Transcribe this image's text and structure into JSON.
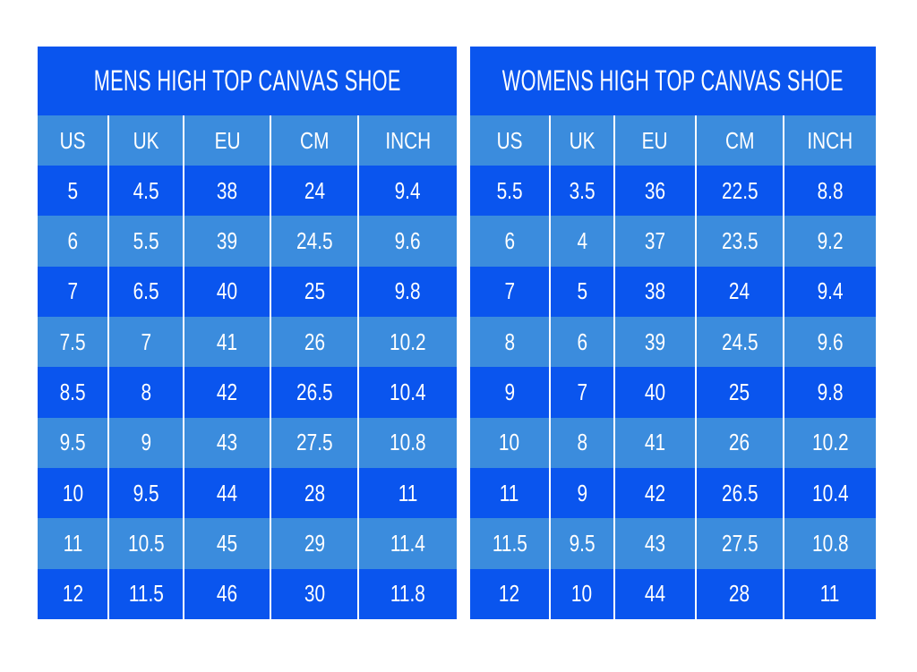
{
  "colors": {
    "dark_blue": "#0a55ee",
    "light_blue": "#3b8cdd",
    "text_white": "#ffffff",
    "divider_white": "#ffffff",
    "page_background": "#ffffff"
  },
  "chart_data": [
    {
      "type": "table",
      "id": "mens",
      "title": "MENS HIGH TOP CANVAS SHOE",
      "columns": [
        "US",
        "UK",
        "EU",
        "CM",
        "INCH"
      ],
      "column_widths_pct": [
        16.7,
        18.0,
        20.7,
        20.9,
        23.7
      ],
      "rows": [
        [
          "5",
          "4.5",
          "38",
          "24",
          "9.4"
        ],
        [
          "6",
          "5.5",
          "39",
          "24.5",
          "9.6"
        ],
        [
          "7",
          "6.5",
          "40",
          "25",
          "9.8"
        ],
        [
          "7.5",
          "7",
          "41",
          "26",
          "10.2"
        ],
        [
          "8.5",
          "8",
          "42",
          "26.5",
          "10.4"
        ],
        [
          "9.5",
          "9",
          "43",
          "27.5",
          "10.8"
        ],
        [
          "10",
          "9.5",
          "44",
          "28",
          "11"
        ],
        [
          "11",
          "10.5",
          "45",
          "29",
          "11.4"
        ],
        [
          "12",
          "11.5",
          "46",
          "30",
          "11.8"
        ]
      ]
    },
    {
      "type": "table",
      "id": "womens",
      "title": "WOMENS HIGH TOP CANVAS SHOE",
      "columns": [
        "US",
        "UK",
        "EU",
        "CM",
        "INCH"
      ],
      "column_widths_pct": [
        19.4,
        15.9,
        20.1,
        21.6,
        23.0
      ],
      "rows": [
        [
          "5.5",
          "3.5",
          "36",
          "22.5",
          "8.8"
        ],
        [
          "6",
          "4",
          "37",
          "23.5",
          "9.2"
        ],
        [
          "7",
          "5",
          "38",
          "24",
          "9.4"
        ],
        [
          "8",
          "6",
          "39",
          "24.5",
          "9.6"
        ],
        [
          "9",
          "7",
          "40",
          "25",
          "9.8"
        ],
        [
          "10",
          "8",
          "41",
          "26",
          "10.2"
        ],
        [
          "11",
          "9",
          "42",
          "26.5",
          "10.4"
        ],
        [
          "11.5",
          "9.5",
          "43",
          "27.5",
          "10.8"
        ],
        [
          "12",
          "10",
          "44",
          "28",
          "11"
        ]
      ]
    }
  ]
}
